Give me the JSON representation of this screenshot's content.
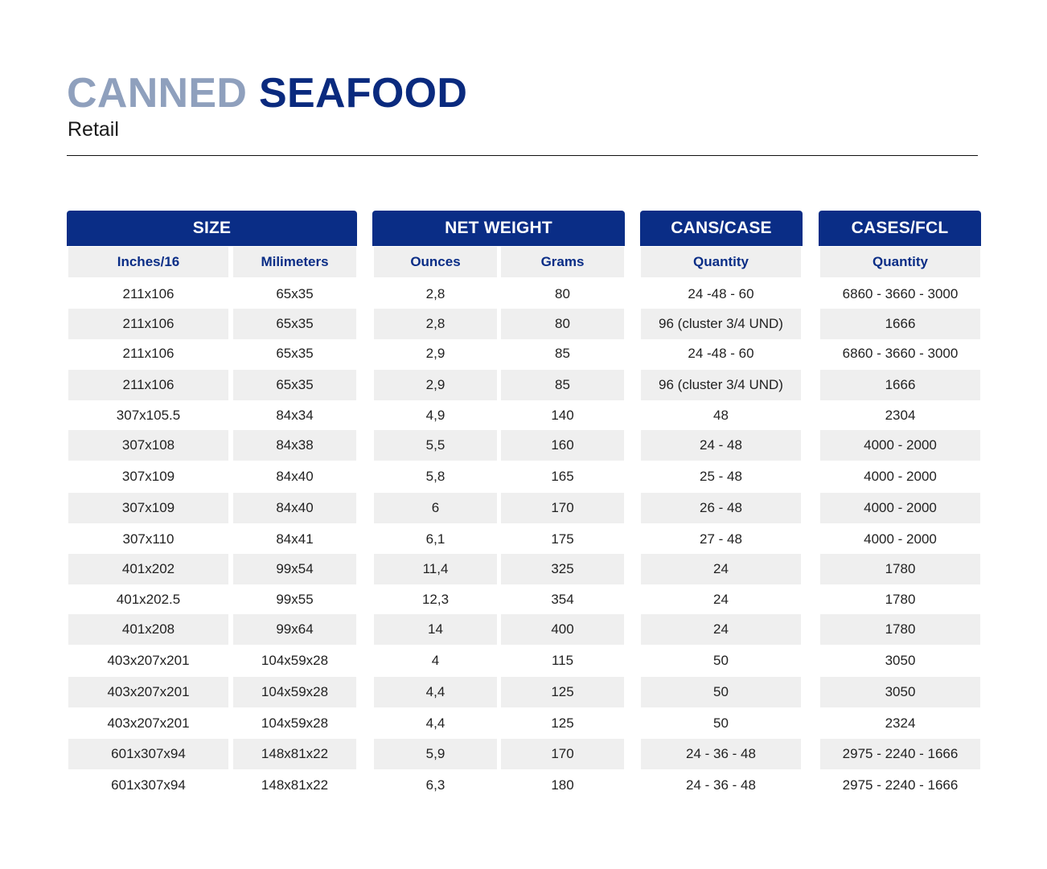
{
  "title": {
    "part1": "CANNED",
    "part2": "SEAFOOD"
  },
  "subtitle": "Retail",
  "groups": [
    {
      "label": "SIZE"
    },
    {
      "label": "NET WEIGHT"
    },
    {
      "label": "CANS/CASE"
    },
    {
      "label": "CASES/FCL"
    }
  ],
  "subheaders": [
    "Inches/16",
    "Milimeters",
    "Ounces",
    "Grams",
    "Quantity",
    "Quantity"
  ],
  "rows": [
    [
      "211x106",
      "65x35",
      "2,8",
      "80",
      "24 -48 - 60",
      "6860 - 3660 - 3000"
    ],
    [
      "211x106",
      "65x35",
      "2,8",
      "80",
      "96 (cluster 3/4 UND)",
      "1666"
    ],
    [
      "211x106",
      "65x35",
      "2,9",
      "85",
      "24 -48 - 60",
      "6860 - 3660 - 3000"
    ],
    [
      "211x106",
      "65x35",
      "2,9",
      "85",
      "96 (cluster 3/4 UND)",
      "1666"
    ],
    [
      "307x105.5",
      "84x34",
      "4,9",
      "140",
      "48",
      "2304"
    ],
    [
      "307x108",
      "84x38",
      "5,5",
      "160",
      "24 - 48",
      "4000 - 2000"
    ],
    [
      "307x109",
      "84x40",
      "5,8",
      "165",
      "25 - 48",
      "4000 - 2000"
    ],
    [
      "307x109",
      "84x40",
      "6",
      "170",
      "26 - 48",
      "4000 - 2000"
    ],
    [
      "307x110",
      "84x41",
      "6,1",
      "175",
      "27 - 48",
      "4000 - 2000"
    ],
    [
      "401x202",
      "99x54",
      "11,4",
      "325",
      "24",
      "1780"
    ],
    [
      "401x202.5",
      "99x55",
      "12,3",
      "354",
      "24",
      "1780"
    ],
    [
      "401x208",
      "99x64",
      "14",
      "400",
      "24",
      "1780"
    ],
    [
      "403x207x201",
      "104x59x28",
      "4",
      "115",
      "50",
      "3050"
    ],
    [
      "403x207x201",
      "104x59x28",
      "4,4",
      "125",
      "50",
      "3050"
    ],
    [
      "403x207x201",
      "104x59x28",
      "4,4",
      "125",
      "50",
      "2324"
    ],
    [
      "601x307x94",
      "148x81x22",
      "5,9",
      "170",
      "24 - 36 - 48",
      "2975 - 2240 - 1666"
    ],
    [
      "601x307x94",
      "148x81x22",
      "6,3",
      "180",
      "24 - 36 - 48",
      "2975 - 2240 - 1666"
    ]
  ]
}
